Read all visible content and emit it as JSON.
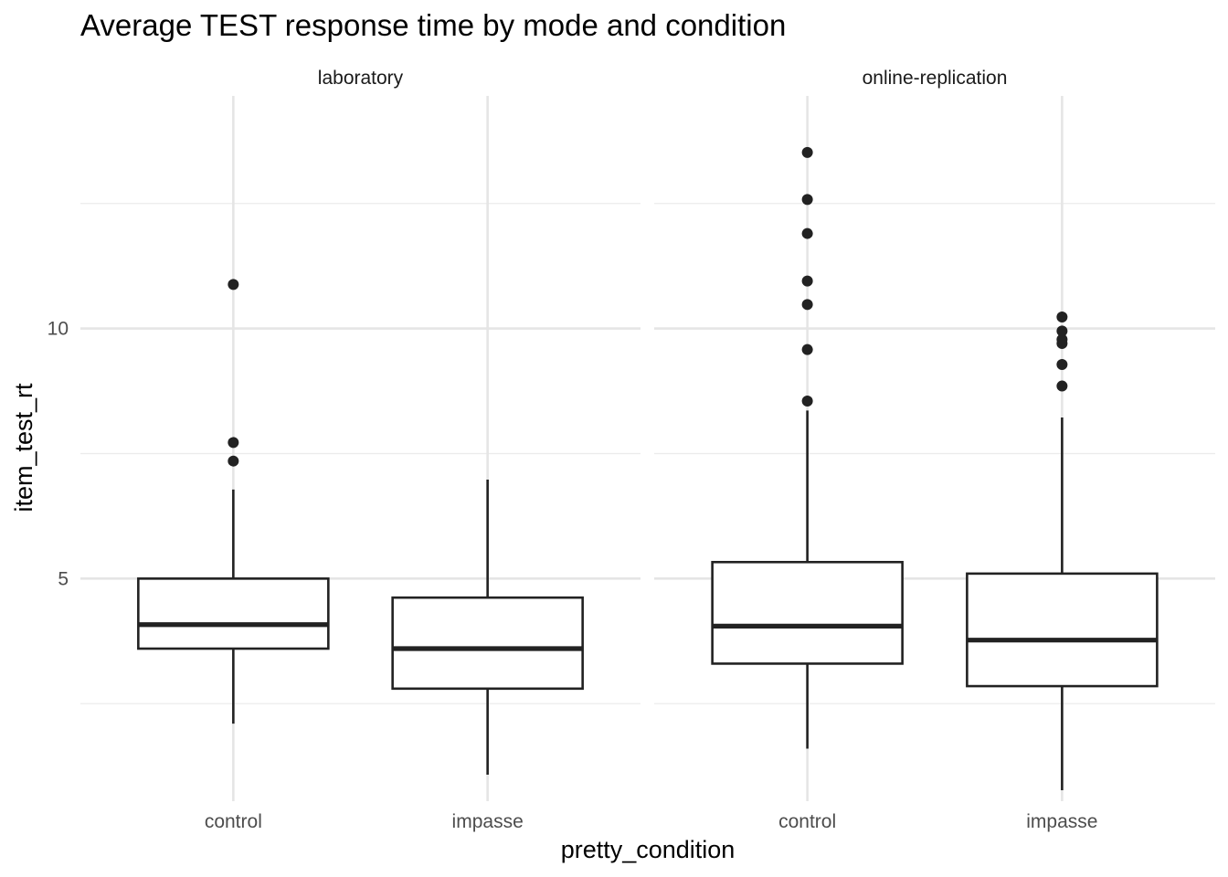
{
  "chart_data": {
    "type": "boxplot",
    "title": "Average TEST response time by mode and condition",
    "xlabel": "pretty_condition",
    "ylabel": "item_test_rt",
    "ylim": [
      0.55,
      14.65
    ],
    "yticks": [
      5,
      10
    ],
    "grid": true,
    "categories": [
      "control",
      "impasse"
    ],
    "panels": [
      {
        "name": "laboratory",
        "boxes": [
          {
            "category": "control",
            "whisker_low": 2.1,
            "q1": 3.6,
            "median": 4.08,
            "q3": 5.0,
            "whisker_high": 6.78,
            "outliers": [
              7.35,
              7.72,
              10.88
            ]
          },
          {
            "category": "impasse",
            "whisker_low": 1.08,
            "q1": 2.8,
            "median": 3.6,
            "q3": 4.62,
            "whisker_high": 6.98,
            "outliers": []
          }
        ]
      },
      {
        "name": "online-replication",
        "boxes": [
          {
            "category": "control",
            "whisker_low": 1.6,
            "q1": 3.3,
            "median": 4.05,
            "q3": 5.33,
            "whisker_high": 8.36,
            "outliers": [
              8.55,
              9.58,
              10.48,
              10.95,
              11.9,
              12.58,
              13.52
            ]
          },
          {
            "category": "impasse",
            "whisker_low": 0.77,
            "q1": 2.85,
            "median": 3.77,
            "q3": 5.1,
            "whisker_high": 8.22,
            "outliers": [
              8.85,
              9.28,
              9.7,
              9.78,
              9.95,
              10.23
            ]
          }
        ]
      }
    ]
  }
}
